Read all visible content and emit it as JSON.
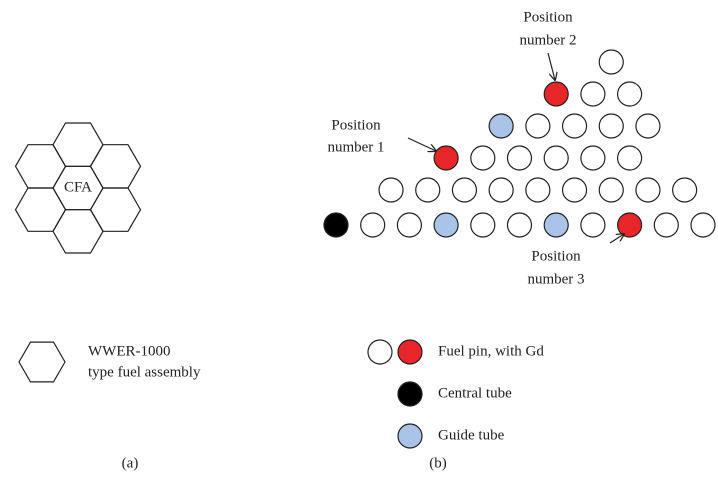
{
  "panel_a": {
    "center_label": "CFA",
    "legend": [
      "WWER-1000",
      "type fuel assembly"
    ],
    "caption": "(a)"
  },
  "panel_b": {
    "positions": [
      [
        "Position",
        "number 1"
      ],
      [
        "Position",
        "number 2"
      ],
      [
        "Position",
        "number 3"
      ]
    ],
    "legend": [
      "Fuel pin, with Gd",
      "Central tube",
      "Guide tube"
    ],
    "caption": "(b)"
  }
}
